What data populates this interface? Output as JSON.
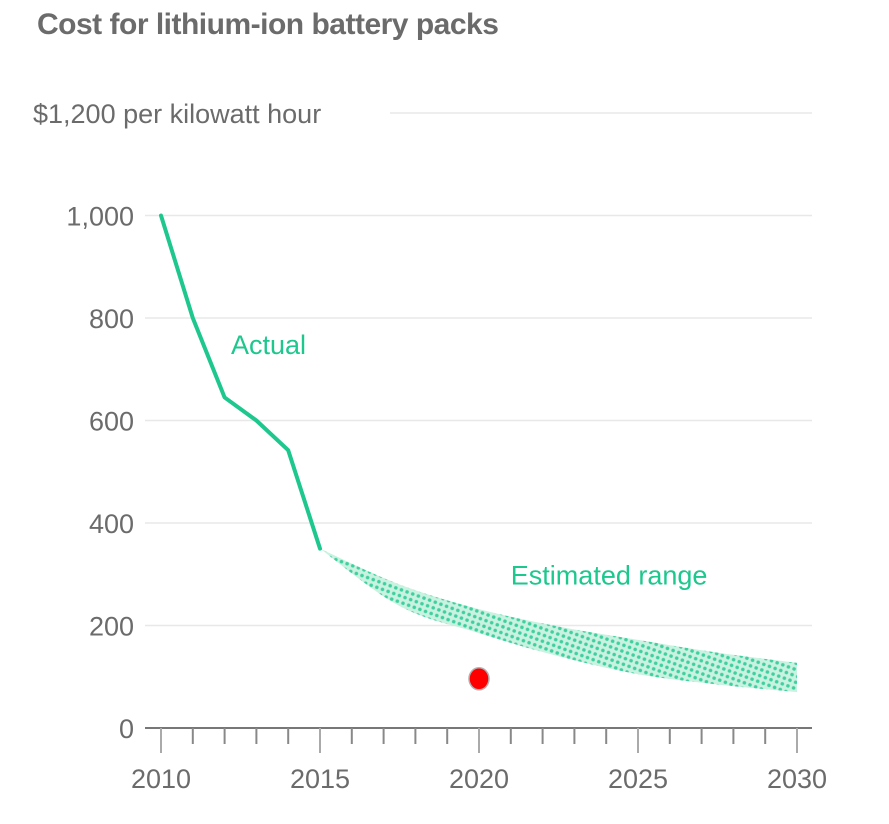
{
  "chart_data": {
    "type": "line",
    "title": "Cost for lithium-ion battery packs",
    "ylabel": "$1,200 per kilowatt hour",
    "xlabel": "",
    "xlim": [
      2010,
      2030
    ],
    "ylim": [
      0,
      1200
    ],
    "grid": true,
    "y_ticks": [
      0,
      200,
      400,
      600,
      800,
      1000,
      1200
    ],
    "y_tick_labels": [
      "0",
      "200",
      "400",
      "600",
      "800",
      "1,000",
      "$1,200 per kilowatt hour"
    ],
    "x_ticks": [
      2010,
      2015,
      2020,
      2025,
      2030
    ],
    "x_tick_labels": [
      "2010",
      "2015",
      "2020",
      "2025",
      "2030"
    ],
    "x_minor_ticks_every": 1,
    "colors": {
      "series": "#1ec78e",
      "marker": "#ff0000",
      "text": "#6b6b6b",
      "grid": "#e8e8e8",
      "axis": "#777777"
    },
    "series": [
      {
        "name": "Actual",
        "kind": "line",
        "x": [
          2010,
          2011,
          2012,
          2013,
          2014,
          2015
        ],
        "values": [
          1000,
          800,
          645,
          600,
          542,
          350
        ]
      },
      {
        "name": "Estimated range",
        "kind": "band",
        "x": [
          2015,
          2017.5,
          2020,
          2022.5,
          2025,
          2027.5,
          2030
        ],
        "upper": [
          350,
          280,
          232,
          198,
          172,
          147,
          127
        ],
        "lower": [
          350,
          238,
          185,
          140,
          105,
          85,
          70
        ]
      }
    ],
    "markers": [
      {
        "name": "highlight-point",
        "x": 2020,
        "y": 96
      }
    ],
    "annotations": [
      {
        "text": "Actual",
        "x": 2012.2,
        "y": 730,
        "series": "Actual"
      },
      {
        "text": "Estimated range",
        "x": 2021.0,
        "y": 280,
        "series": "Estimated range"
      }
    ]
  }
}
